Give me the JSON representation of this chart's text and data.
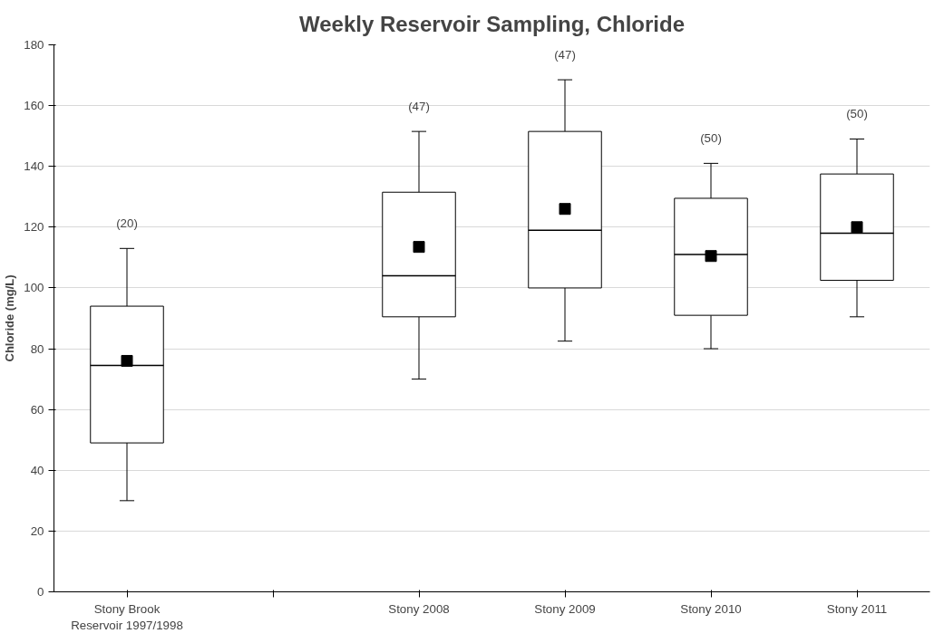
{
  "chart_data": {
    "type": "box",
    "title": "Weekly Reservoir Sampling, Chloride",
    "ylabel": "Chloride (mg/L)",
    "categories": [
      "Stony Brook Reservoir 1997/1998",
      null,
      "Stony 2008",
      "Stony 2009",
      "Stony 2010",
      "Stony 2011"
    ],
    "boxes": [
      {
        "low": 30,
        "q1": 49,
        "median": 74.5,
        "q3": 94,
        "high": 113,
        "mean": 76
      },
      null,
      {
        "low": 70,
        "q1": 90.5,
        "median": 104,
        "q3": 131.5,
        "high": 151.5,
        "mean": 113.5
      },
      {
        "low": 82.5,
        "q1": 100,
        "median": 119,
        "q3": 151.5,
        "high": 168.5,
        "mean": 126
      },
      {
        "low": 80,
        "q1": 91,
        "median": 111,
        "q3": 129.5,
        "high": 141,
        "mean": 110.5
      },
      {
        "low": 90.5,
        "q1": 102.5,
        "median": 118,
        "q3": 137.5,
        "high": 149,
        "mean": 120
      }
    ],
    "marker": "square",
    "ylim": [
      0,
      180
    ],
    "yticks": [
      0,
      20,
      40,
      60,
      80,
      100,
      120,
      140,
      160,
      180
    ],
    "grid": "y",
    "annotations": [
      "(20)",
      "(47)",
      "(47)",
      "(50)",
      "(50)"
    ]
  }
}
